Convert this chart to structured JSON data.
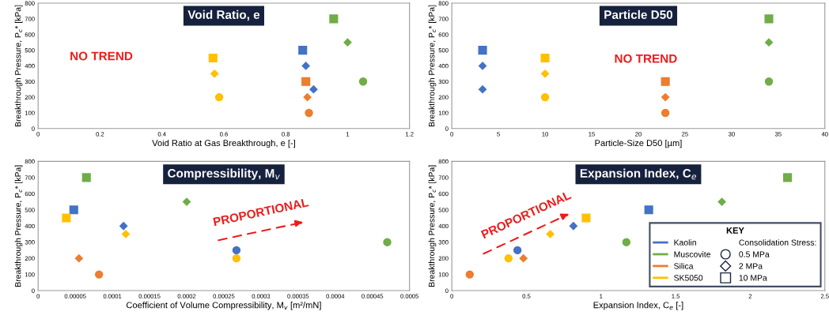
{
  "chart_data": [
    {
      "type": "scatter",
      "title": "Void Ratio, e",
      "xlabel": "Void Ratio at Gas Breakthrough, e [-]",
      "ylabel": "Breakthrough Pressure, P$_{c}$* [kPa]",
      "xlim": [
        0,
        1.2
      ],
      "xticks": [
        0,
        0.2,
        0.4,
        0.6,
        0.8,
        1,
        1.2
      ],
      "ylim": [
        0,
        800
      ],
      "yticks": [
        0,
        100,
        200,
        300,
        400,
        500,
        600,
        700,
        800
      ],
      "grid": false,
      "annotations": [
        "NO TREND"
      ],
      "series": [
        {
          "color": "#4472c4",
          "marker": "square",
          "x": [
            0.855
          ],
          "values": [
            500
          ]
        },
        {
          "color": "#4472c4",
          "marker": "diamond",
          "x": [
            0.865,
            0.89
          ],
          "values": [
            400,
            250
          ]
        },
        {
          "color": "#70ad47",
          "marker": "square",
          "x": [
            0.955
          ],
          "values": [
            700
          ]
        },
        {
          "color": "#70ad47",
          "marker": "diamond",
          "x": [
            1.0
          ],
          "values": [
            550
          ]
        },
        {
          "color": "#70ad47",
          "marker": "circle",
          "x": [
            1.05
          ],
          "values": [
            300
          ]
        },
        {
          "color": "#ed7d31",
          "marker": "square",
          "x": [
            0.865
          ],
          "values": [
            300
          ]
        },
        {
          "color": "#ed7d31",
          "marker": "diamond",
          "x": [
            0.87
          ],
          "values": [
            200
          ]
        },
        {
          "color": "#ed7d31",
          "marker": "circle",
          "x": [
            0.875
          ],
          "values": [
            100
          ]
        },
        {
          "color": "#ffc000",
          "marker": "square",
          "x": [
            0.565
          ],
          "values": [
            450
          ]
        },
        {
          "color": "#ffc000",
          "marker": "diamond",
          "x": [
            0.57
          ],
          "values": [
            350
          ]
        },
        {
          "color": "#ffc000",
          "marker": "circle",
          "x": [
            0.585
          ],
          "values": [
            200
          ]
        }
      ]
    },
    {
      "type": "scatter",
      "title": "Particle D50",
      "xlabel": "Particle-Size D50 [µm]",
      "ylabel": "Breakthrough Pressure, P$_{c}$* [kPa]",
      "xlim": [
        0,
        40
      ],
      "xticks": [
        0,
        5,
        10,
        15,
        20,
        25,
        30,
        35,
        40
      ],
      "ylim": [
        0,
        800
      ],
      "yticks": [
        0,
        100,
        200,
        300,
        400,
        500,
        600,
        700,
        800
      ],
      "grid": false,
      "annotations": [
        "NO TREND"
      ],
      "series": [
        {
          "color": "#4472c4",
          "marker": "square",
          "x": [
            3.3
          ],
          "values": [
            500
          ]
        },
        {
          "color": "#4472c4",
          "marker": "diamond",
          "x": [
            3.3,
            3.3
          ],
          "values": [
            400,
            250
          ]
        },
        {
          "color": "#70ad47",
          "marker": "square",
          "x": [
            34
          ],
          "values": [
            700
          ]
        },
        {
          "color": "#70ad47",
          "marker": "diamond",
          "x": [
            34
          ],
          "values": [
            550
          ]
        },
        {
          "color": "#70ad47",
          "marker": "circle",
          "x": [
            34
          ],
          "values": [
            300
          ]
        },
        {
          "color": "#ed7d31",
          "marker": "square",
          "x": [
            22.9
          ],
          "values": [
            300
          ]
        },
        {
          "color": "#ed7d31",
          "marker": "diamond",
          "x": [
            22.9
          ],
          "values": [
            200
          ]
        },
        {
          "color": "#ed7d31",
          "marker": "circle",
          "x": [
            22.9
          ],
          "values": [
            100
          ]
        },
        {
          "color": "#ffc000",
          "marker": "square",
          "x": [
            10
          ],
          "values": [
            450
          ]
        },
        {
          "color": "#ffc000",
          "marker": "diamond",
          "x": [
            10
          ],
          "values": [
            350
          ]
        },
        {
          "color": "#ffc000",
          "marker": "circle",
          "x": [
            10
          ],
          "values": [
            200
          ]
        }
      ]
    },
    {
      "type": "scatter",
      "title": "Compressibility, M$_{v}$",
      "xlabel": "Coefficient of Volume Compressibility, M$_{v}$ [m²/mN]",
      "ylabel": "Breakthrough Pressure, P$_{c}$* [kPa]",
      "xlim": [
        0,
        0.0005
      ],
      "xticks": [
        0,
        {
          "value": 5e-05,
          "label": "0.00005"
        },
        0.0001,
        0.00015,
        0.0002,
        0.00025,
        0.0003,
        0.00035,
        0.0004,
        0.00045,
        0.0005
      ],
      "ylim": [
        0,
        800
      ],
      "yticks": [
        0,
        100,
        200,
        300,
        400,
        500,
        600,
        700,
        800
      ],
      "grid": false,
      "annotations": [
        "PROPORTIONAL"
      ],
      "series": [
        {
          "color": "#4472c4",
          "marker": "square",
          "x": [
            4.8e-05
          ],
          "values": [
            500
          ]
        },
        {
          "color": "#4472c4",
          "marker": "diamond",
          "x": [
            0.000115
          ],
          "values": [
            400
          ]
        },
        {
          "color": "#4472c4",
          "marker": "circle",
          "x": [
            0.000267
          ],
          "values": [
            250
          ]
        },
        {
          "color": "#70ad47",
          "marker": "square",
          "x": [
            6.5e-05
          ],
          "values": [
            700
          ]
        },
        {
          "color": "#70ad47",
          "marker": "diamond",
          "x": [
            0.0002
          ],
          "values": [
            550
          ]
        },
        {
          "color": "#70ad47",
          "marker": "circle",
          "x": [
            0.00047
          ],
          "values": [
            300
          ]
        },
        {
          "color": "#ed7d31",
          "marker": "diamond",
          "x": [
            5.5e-05
          ],
          "values": [
            200
          ]
        },
        {
          "color": "#ed7d31",
          "marker": "circle",
          "x": [
            8.2e-05
          ],
          "values": [
            100
          ]
        },
        {
          "color": "#ffc000",
          "marker": "square",
          "x": [
            3.8e-05
          ],
          "values": [
            450
          ]
        },
        {
          "color": "#ffc000",
          "marker": "diamond",
          "x": [
            0.000118
          ],
          "values": [
            350
          ]
        },
        {
          "color": "#ffc000",
          "marker": "circle",
          "x": [
            0.000267
          ],
          "values": [
            200
          ]
        }
      ]
    },
    {
      "type": "scatter",
      "title": "Expansion Index, C$_{e}$",
      "xlabel": "Expansion Index, C$_{e}$ [-]",
      "ylabel": "Breakthrough Pressure, P$_{c}$* [kPa]",
      "xlim": [
        0,
        2.5
      ],
      "xticks": [
        0,
        0.5,
        1,
        1.5,
        2,
        2.5
      ],
      "ylim": [
        0,
        800
      ],
      "yticks": [
        0,
        100,
        200,
        300,
        400,
        500,
        600,
        700,
        800
      ],
      "grid": false,
      "annotations": [
        "PROPORTIONAL"
      ],
      "legend": "bottom right",
      "legend_title": "KEY",
      "series": [
        {
          "name": "Kaolin",
          "color": "#4472c4",
          "marker": "square",
          "x": [
            1.32
          ],
          "values": [
            500
          ]
        },
        {
          "color": "#4472c4",
          "marker": "diamond",
          "x": [
            0.815
          ],
          "values": [
            400
          ]
        },
        {
          "color": "#4472c4",
          "marker": "circle",
          "x": [
            0.44
          ],
          "values": [
            250
          ]
        },
        {
          "name": "Muscovite",
          "color": "#70ad47",
          "marker": "square",
          "x": [
            2.25
          ],
          "values": [
            700
          ]
        },
        {
          "color": "#70ad47",
          "marker": "diamond",
          "x": [
            1.81
          ],
          "values": [
            550
          ]
        },
        {
          "color": "#70ad47",
          "marker": "circle",
          "x": [
            1.17
          ],
          "values": [
            300
          ]
        },
        {
          "name": "Silica",
          "color": "#ed7d31",
          "marker": "diamond",
          "x": [
            0.48
          ],
          "values": [
            200
          ]
        },
        {
          "color": "#ed7d31",
          "marker": "circle",
          "x": [
            0.12
          ],
          "values": [
            100
          ]
        },
        {
          "name": "SK5050",
          "color": "#ffc000",
          "marker": "square",
          "x": [
            0.9
          ],
          "values": [
            450
          ]
        },
        {
          "color": "#ffc000",
          "marker": "diamond",
          "x": [
            0.66
          ],
          "values": [
            350
          ]
        },
        {
          "color": "#ffc000",
          "marker": "circle",
          "x": [
            0.38
          ],
          "values": [
            200
          ]
        },
        {
          "name": "Consolidation Stress:",
          "marker": "none"
        },
        {
          "name": "0.5 MPa",
          "color": "#ffffff",
          "marker": "circle"
        },
        {
          "name": "2 MPa",
          "color": "#ffffff",
          "marker": "diamond"
        },
        {
          "name": "10 MPa",
          "color": "#ffffff",
          "marker": "square"
        }
      ]
    }
  ]
}
